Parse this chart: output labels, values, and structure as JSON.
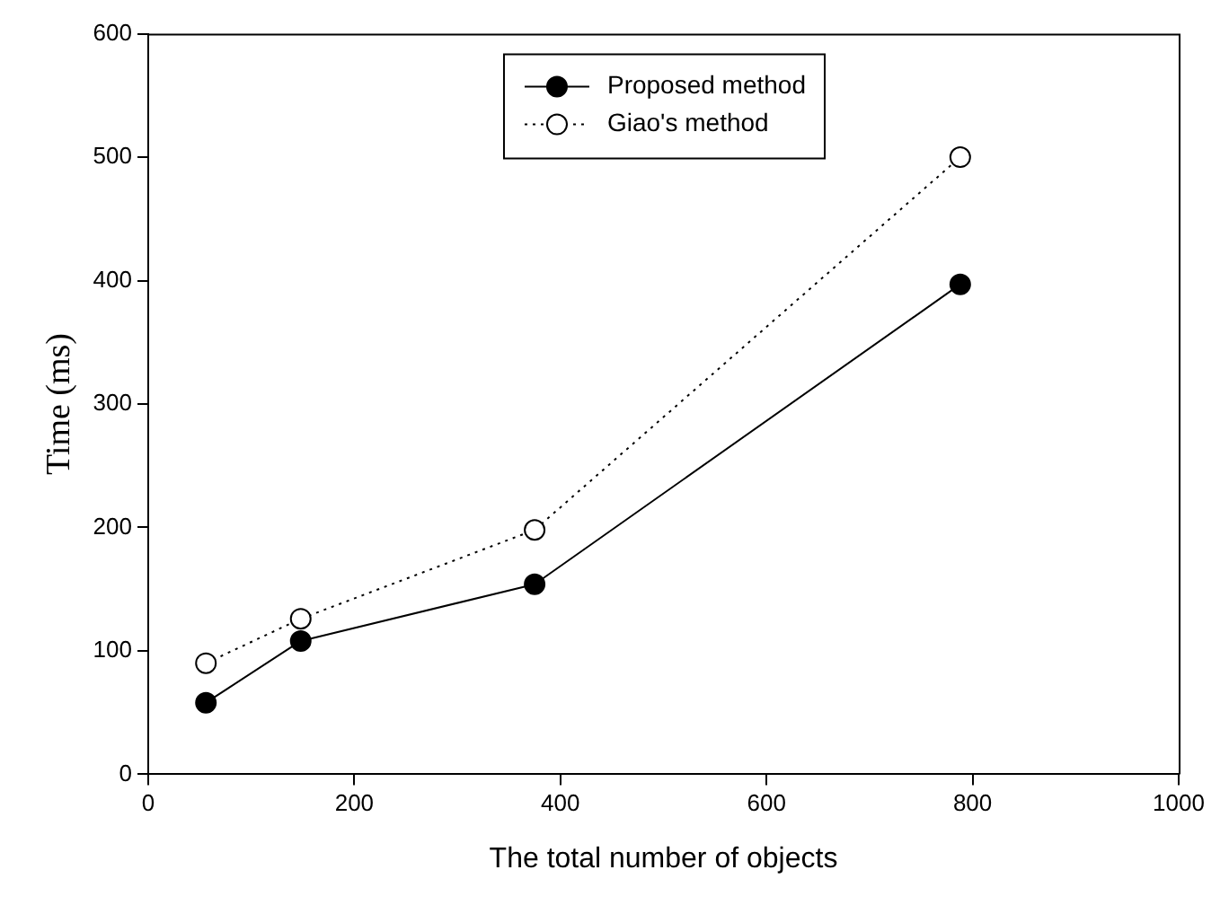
{
  "chart_data": {
    "type": "line",
    "xlabel": "The total number of objects",
    "ylabel": "Time (ms)",
    "x": [
      56,
      148,
      375,
      788
    ],
    "series": [
      {
        "name": "Proposed method",
        "color": "#000000",
        "values": [
          58,
          108,
          154,
          397
        ],
        "line_style": "solid"
      },
      {
        "name": "Giao's method",
        "color": "#000000",
        "values": [
          90,
          126,
          198,
          500
        ],
        "line_style": "dotted"
      }
    ],
    "xlim": [
      0,
      1000
    ],
    "xticks": [
      0,
      200,
      400,
      600,
      800,
      1000
    ],
    "ylim": [
      0,
      600
    ],
    "yticks": [
      0,
      100,
      200,
      300,
      400,
      500,
      600
    ],
    "grid": false,
    "legend": "top",
    "marker": "circle"
  }
}
